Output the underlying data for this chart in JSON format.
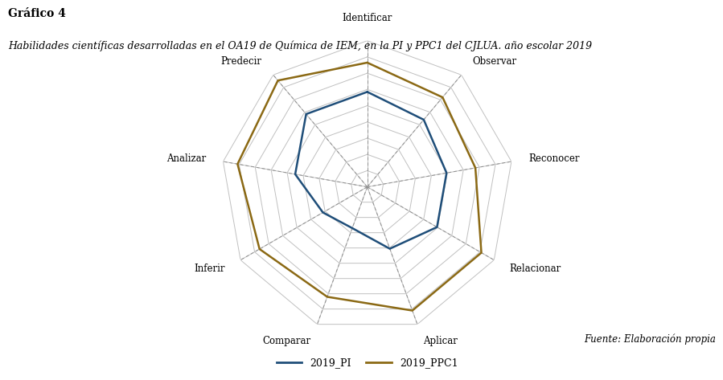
{
  "title": "Gráfico 4",
  "subtitle": "Habilidades científicas desarrolladas en el OA19 de Química de IEM, en la PI y PPC1 del CJLUA. año escolar 2019",
  "source": "Fuente: Elaboración propia",
  "categories": [
    "Identificar",
    "Observar",
    "Reconocer",
    "Relacionar",
    "Aplicar",
    "Comparar",
    "Inferir",
    "Analizar",
    "Predecir"
  ],
  "series": [
    {
      "name": "2019_PI",
      "values": [
        6.5,
        6.0,
        5.5,
        5.5,
        4.5,
        3.0,
        3.5,
        5.0,
        6.5
      ],
      "color": "#1f4e79",
      "linewidth": 1.8
    },
    {
      "name": "2019_PPC1",
      "values": [
        8.5,
        8.0,
        7.5,
        9.0,
        9.0,
        8.0,
        8.5,
        9.0,
        9.5
      ],
      "color": "#8B6914",
      "linewidth": 1.8
    }
  ],
  "max_value": 10,
  "num_rings": 9,
  "grid_color": "#c0c0c0",
  "dashed_color": "#909090",
  "background_color": "#ffffff",
  "title_fontsize": 10,
  "subtitle_fontsize": 9,
  "label_fontsize": 8.5,
  "legend_fontsize": 9
}
